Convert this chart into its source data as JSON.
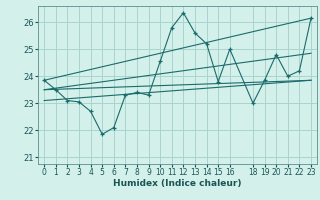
{
  "title": "",
  "xlabel": "Humidex (Indice chaleur)",
  "bg_color": "#d4f0eb",
  "grid_color": "#aad4cf",
  "line_color": "#1a6b6b",
  "xlim": [
    -0.5,
    23.5
  ],
  "ylim": [
    20.75,
    26.6
  ],
  "xticks": [
    0,
    1,
    2,
    3,
    4,
    5,
    6,
    7,
    8,
    9,
    10,
    11,
    12,
    13,
    14,
    15,
    16,
    18,
    19,
    20,
    21,
    22,
    23
  ],
  "yticks": [
    21,
    22,
    23,
    24,
    25,
    26
  ],
  "series1_x": [
    0,
    1,
    2,
    3,
    4,
    5,
    6,
    7,
    8,
    9,
    10,
    11,
    12,
    13,
    14,
    15,
    16,
    18,
    19,
    20,
    21,
    22,
    23
  ],
  "series1_y": [
    23.85,
    23.5,
    23.1,
    23.05,
    22.7,
    21.85,
    22.1,
    23.3,
    23.4,
    23.3,
    24.55,
    25.8,
    26.35,
    25.6,
    25.2,
    23.8,
    25.0,
    23.0,
    23.85,
    24.8,
    24.0,
    24.2,
    26.15
  ],
  "trend_lines": [
    {
      "x": [
        0,
        23
      ],
      "y": [
        23.85,
        26.15
      ]
    },
    {
      "x": [
        0,
        23
      ],
      "y": [
        23.5,
        24.85
      ]
    },
    {
      "x": [
        0,
        23
      ],
      "y": [
        23.1,
        23.85
      ]
    },
    {
      "x": [
        0,
        23
      ],
      "y": [
        23.5,
        23.85
      ]
    }
  ]
}
